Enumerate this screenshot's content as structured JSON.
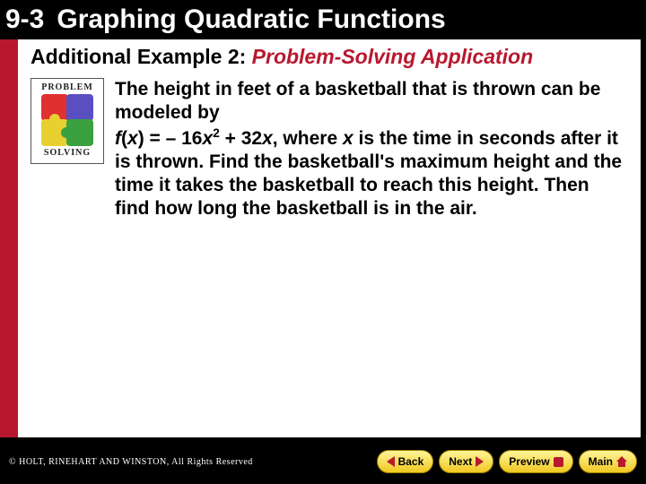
{
  "header": {
    "section_number": "9-3",
    "section_title": "Graphing Quadratic Functions"
  },
  "example": {
    "prefix": "Additional Example 2:",
    "title": "Problem-Solving Application"
  },
  "ps_icon": {
    "top_label": "PROBLEM",
    "bottom_label": "SOLVING"
  },
  "problem": {
    "line1": "The height in feet of a basketball that is thrown can be modeled by",
    "eq_lhs": "f",
    "eq_var1": "x",
    "eq_mid": ") = – 16",
    "eq_var2": "x",
    "eq_sup": "2",
    "eq_mid2": " + 32",
    "eq_var3": "x",
    "eq_tail": ", where ",
    "eq_var4": "x",
    "line2b": " is the time in seconds after it is thrown. Find the basketball's maximum height and the time it takes the basketball to reach this height. Then find how long the basketball is in the air."
  },
  "footer": {
    "copyright": "© HOLT, RINEHART AND WINSTON, All Rights Reserved",
    "back": "Back",
    "next": "Next",
    "preview": "Preview",
    "main": "Main"
  },
  "colors": {
    "accent_red": "#b7182e",
    "button_gradient_top": "#fff59a",
    "button_gradient_bottom": "#f0c820",
    "background": "#000000",
    "content_bg": "#ffffff"
  }
}
